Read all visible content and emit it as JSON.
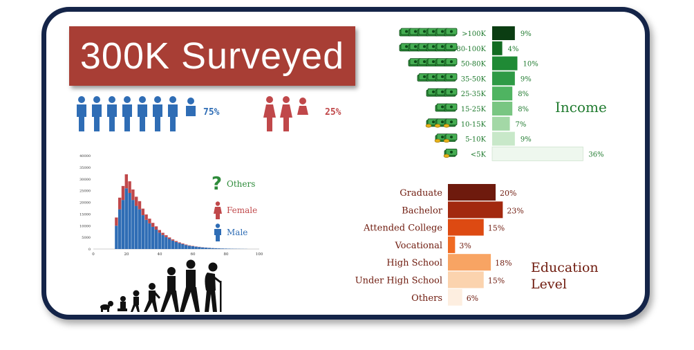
{
  "title": "300K Surveyed",
  "gender_split": {
    "male_pct": "75%",
    "female_pct": "25%",
    "male_color": "#2f6db5",
    "female_color": "#c0484a"
  },
  "age_chart_legend": [
    {
      "label": "Others",
      "color": "#2e8b3a",
      "icon": "question-mark-icon"
    },
    {
      "label": "Female",
      "color": "#c0484a",
      "icon": "female-figure-icon"
    },
    {
      "label": "Male",
      "color": "#2f6db5",
      "icon": "male-figure-icon"
    }
  ],
  "income_label": "Income",
  "education_label_line1": "Education",
  "education_label_line2": "Level",
  "chart_data": [
    {
      "type": "bar",
      "title": "",
      "xlabel": "",
      "ylabel": "",
      "xlim": [
        0,
        100
      ],
      "ylim": [
        0,
        40000
      ],
      "x_ticks": [
        "0",
        "20",
        "40",
        "60",
        "80",
        "100"
      ],
      "y_ticks": [
        "0",
        "5000",
        "10000",
        "15000",
        "20000",
        "25000",
        "30000",
        "35000",
        "40000"
      ],
      "bin_width": 2,
      "bin_start": 13,
      "series": [
        {
          "name": "Male",
          "values": [
            10000,
            17000,
            21000,
            26000,
            24000,
            21000,
            18500,
            17000,
            14500,
            12500,
            11000,
            9500,
            8300,
            7000,
            6000,
            5100,
            4300,
            3600,
            3000,
            2500,
            2100,
            1700,
            1400,
            1200,
            1000,
            850,
            700,
            580,
            480,
            400,
            330,
            270,
            220,
            180,
            150,
            120,
            95,
            75,
            55,
            40
          ]
        },
        {
          "name": "Female",
          "values": [
            3500,
            5000,
            6000,
            6000,
            5000,
            4500,
            3900,
            3500,
            2800,
            2300,
            2000,
            1700,
            1400,
            1150,
            950,
            800,
            650,
            520,
            420,
            340,
            280,
            220,
            170,
            130,
            100,
            80,
            60,
            45,
            35,
            25,
            20,
            15,
            10,
            8,
            6,
            5,
            4,
            3,
            2,
            1
          ]
        }
      ],
      "legend": "right"
    },
    {
      "type": "bar",
      "orientation": "horizontal",
      "categories": [
        ">100K",
        "80-100K",
        "50-80K",
        "35-50K",
        "25-35K",
        "15-25K",
        "10-15K",
        "5-10K",
        "<5K"
      ],
      "values": [
        9,
        4,
        10,
        9,
        8,
        8,
        7,
        9,
        36
      ],
      "value_labels": [
        "9%",
        "4%",
        "10%",
        "9%",
        "8%",
        "8%",
        "7%",
        "9%",
        "36%"
      ],
      "colors": [
        "#0b3d12",
        "#136b22",
        "#1f8a35",
        "#2e9a45",
        "#4fb461",
        "#79c682",
        "#a3d8a6",
        "#c8e8c9",
        "#eef7ee"
      ],
      "icon_counts": [
        6,
        6,
        5,
        4,
        3,
        2,
        3,
        2,
        1
      ],
      "icon_coin": [
        false,
        false,
        false,
        false,
        false,
        false,
        true,
        true,
        true
      ]
    },
    {
      "type": "bar",
      "orientation": "horizontal",
      "categories": [
        "Graduate",
        "Bachelor",
        "Attended College",
        "Vocational",
        "High School",
        "Under High School",
        "Others"
      ],
      "values": [
        20,
        23,
        15,
        3,
        18,
        15,
        6
      ],
      "value_labels": [
        "20%",
        "23%",
        "15%",
        "3%",
        "18%",
        "15%",
        "6%"
      ],
      "colors": [
        "#6e1a0d",
        "#a2280f",
        "#dd4a12",
        "#f06a22",
        "#f8a463",
        "#fbd3ae",
        "#fdeee0"
      ]
    }
  ]
}
